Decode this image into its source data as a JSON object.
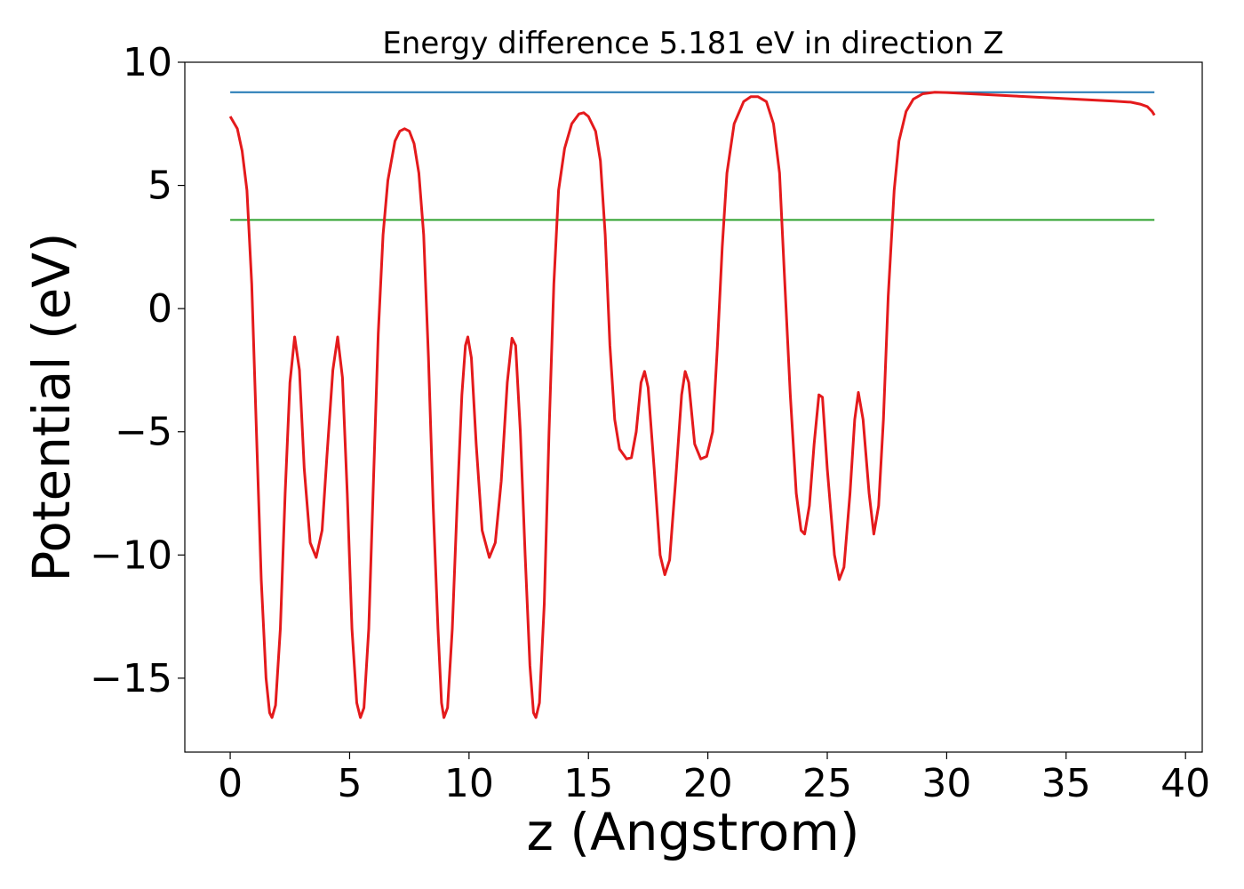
{
  "chart_data": {
    "type": "line",
    "title": "Energy difference 5.181 eV in direction Z",
    "xlabel": "z (Angstrom)",
    "ylabel": "Potential (eV)",
    "xlim": [
      -1.9,
      40.7
    ],
    "ylim": [
      -18,
      10
    ],
    "xticks": [
      0,
      5,
      10,
      15,
      20,
      25,
      30,
      35,
      40
    ],
    "yticks": [
      -15,
      -10,
      -5,
      0,
      5,
      10
    ],
    "xtick_labels": [
      "0",
      "5",
      "10",
      "15",
      "20",
      "25",
      "30",
      "35",
      "40"
    ],
    "ytick_labels": [
      "−15",
      "−10",
      "−5",
      "0",
      "5",
      "10"
    ],
    "grid": false,
    "series": [
      {
        "kind": "hline",
        "color": "#1f77b4",
        "x": [
          0,
          38.7
        ],
        "y": [
          8.78,
          8.78
        ]
      },
      {
        "kind": "hline",
        "color": "#2ca02c",
        "x": [
          0,
          38.7
        ],
        "y": [
          3.6,
          3.6
        ]
      },
      {
        "kind": "potential",
        "color": "#e41a1c",
        "points": [
          [
            0.0,
            7.8
          ],
          [
            0.3,
            7.3
          ],
          [
            0.5,
            6.4
          ],
          [
            0.7,
            4.8
          ],
          [
            0.9,
            1.0
          ],
          [
            1.1,
            -5.0
          ],
          [
            1.3,
            -11.0
          ],
          [
            1.5,
            -15.0
          ],
          [
            1.65,
            -16.4
          ],
          [
            1.75,
            -16.6
          ],
          [
            1.9,
            -16.1
          ],
          [
            2.1,
            -13.0
          ],
          [
            2.3,
            -7.5
          ],
          [
            2.5,
            -3.0
          ],
          [
            2.7,
            -1.15
          ],
          [
            2.9,
            -2.5
          ],
          [
            3.1,
            -6.5
          ],
          [
            3.35,
            -9.5
          ],
          [
            3.6,
            -10.1
          ],
          [
            3.85,
            -9.0
          ],
          [
            4.05,
            -6.0
          ],
          [
            4.3,
            -2.5
          ],
          [
            4.5,
            -1.15
          ],
          [
            4.7,
            -2.8
          ],
          [
            4.9,
            -7.5
          ],
          [
            5.1,
            -13.0
          ],
          [
            5.3,
            -16.0
          ],
          [
            5.45,
            -16.6
          ],
          [
            5.6,
            -16.2
          ],
          [
            5.8,
            -13.0
          ],
          [
            6.0,
            -7.0
          ],
          [
            6.2,
            -1.0
          ],
          [
            6.4,
            3.0
          ],
          [
            6.6,
            5.2
          ],
          [
            6.9,
            6.8
          ],
          [
            7.1,
            7.2
          ],
          [
            7.3,
            7.3
          ],
          [
            7.5,
            7.2
          ],
          [
            7.7,
            6.7
          ],
          [
            7.9,
            5.5
          ],
          [
            8.1,
            3.0
          ],
          [
            8.3,
            -2.0
          ],
          [
            8.5,
            -8.0
          ],
          [
            8.7,
            -13.0
          ],
          [
            8.85,
            -16.0
          ],
          [
            8.95,
            -16.6
          ],
          [
            9.1,
            -16.2
          ],
          [
            9.3,
            -13.0
          ],
          [
            9.5,
            -8.0
          ],
          [
            9.7,
            -3.5
          ],
          [
            9.85,
            -1.5
          ],
          [
            9.95,
            -1.15
          ],
          [
            10.1,
            -2.0
          ],
          [
            10.3,
            -5.5
          ],
          [
            10.55,
            -9.0
          ],
          [
            10.85,
            -10.1
          ],
          [
            11.1,
            -9.5
          ],
          [
            11.35,
            -7.0
          ],
          [
            11.6,
            -3.0
          ],
          [
            11.8,
            -1.2
          ],
          [
            11.95,
            -1.5
          ],
          [
            12.15,
            -5.0
          ],
          [
            12.35,
            -10.0
          ],
          [
            12.55,
            -14.5
          ],
          [
            12.7,
            -16.4
          ],
          [
            12.8,
            -16.6
          ],
          [
            12.95,
            -16.0
          ],
          [
            13.15,
            -12.0
          ],
          [
            13.35,
            -5.0
          ],
          [
            13.55,
            1.0
          ],
          [
            13.75,
            4.8
          ],
          [
            14.0,
            6.5
          ],
          [
            14.3,
            7.5
          ],
          [
            14.6,
            7.9
          ],
          [
            14.8,
            7.95
          ],
          [
            15.0,
            7.8
          ],
          [
            15.3,
            7.2
          ],
          [
            15.5,
            6.0
          ],
          [
            15.7,
            3.0
          ],
          [
            15.9,
            -1.5
          ],
          [
            16.1,
            -4.5
          ],
          [
            16.3,
            -5.7
          ],
          [
            16.6,
            -6.1
          ],
          [
            16.8,
            -6.05
          ],
          [
            17.0,
            -5.0
          ],
          [
            17.2,
            -3.0
          ],
          [
            17.35,
            -2.55
          ],
          [
            17.5,
            -3.2
          ],
          [
            17.75,
            -6.5
          ],
          [
            18.0,
            -10.0
          ],
          [
            18.2,
            -10.8
          ],
          [
            18.4,
            -10.2
          ],
          [
            18.65,
            -7.0
          ],
          [
            18.9,
            -3.5
          ],
          [
            19.05,
            -2.55
          ],
          [
            19.2,
            -3.0
          ],
          [
            19.45,
            -5.5
          ],
          [
            19.7,
            -6.1
          ],
          [
            19.95,
            -6.0
          ],
          [
            20.2,
            -5.0
          ],
          [
            20.4,
            -1.5
          ],
          [
            20.6,
            2.5
          ],
          [
            20.8,
            5.5
          ],
          [
            21.1,
            7.5
          ],
          [
            21.5,
            8.4
          ],
          [
            21.8,
            8.6
          ],
          [
            22.1,
            8.6
          ],
          [
            22.45,
            8.4
          ],
          [
            22.75,
            7.5
          ],
          [
            23.0,
            5.5
          ],
          [
            23.2,
            1.5
          ],
          [
            23.45,
            -3.5
          ],
          [
            23.7,
            -7.5
          ],
          [
            23.9,
            -9.0
          ],
          [
            24.05,
            -9.15
          ],
          [
            24.25,
            -8.0
          ],
          [
            24.45,
            -5.5
          ],
          [
            24.65,
            -3.5
          ],
          [
            24.8,
            -3.6
          ],
          [
            25.0,
            -6.5
          ],
          [
            25.3,
            -10.0
          ],
          [
            25.5,
            -11.0
          ],
          [
            25.7,
            -10.5
          ],
          [
            25.95,
            -7.5
          ],
          [
            26.15,
            -4.5
          ],
          [
            26.3,
            -3.4
          ],
          [
            26.5,
            -4.5
          ],
          [
            26.75,
            -7.5
          ],
          [
            26.95,
            -9.15
          ],
          [
            27.15,
            -8.0
          ],
          [
            27.35,
            -4.5
          ],
          [
            27.55,
            0.5
          ],
          [
            27.8,
            4.8
          ],
          [
            28.0,
            6.8
          ],
          [
            28.3,
            8.0
          ],
          [
            28.6,
            8.5
          ],
          [
            29.0,
            8.72
          ],
          [
            29.5,
            8.78
          ],
          [
            30.0,
            8.77
          ],
          [
            31.0,
            8.72
          ],
          [
            32.0,
            8.67
          ],
          [
            33.0,
            8.62
          ],
          [
            34.0,
            8.57
          ],
          [
            35.0,
            8.52
          ],
          [
            36.0,
            8.47
          ],
          [
            37.0,
            8.42
          ],
          [
            37.7,
            8.38
          ],
          [
            38.1,
            8.3
          ],
          [
            38.4,
            8.2
          ],
          [
            38.6,
            8.0
          ],
          [
            38.7,
            7.85
          ]
        ]
      }
    ]
  }
}
